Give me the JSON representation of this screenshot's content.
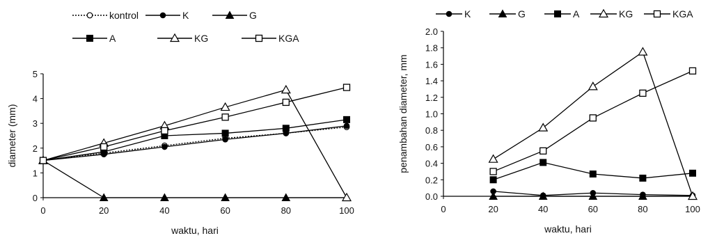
{
  "chart_data": [
    {
      "type": "line",
      "title": "",
      "xlabel": "waktu, hari",
      "ylabel": "diameter (mm)",
      "x": [
        0,
        20,
        40,
        60,
        80,
        100
      ],
      "xlim": [
        0,
        100
      ],
      "ylim": [
        0,
        5
      ],
      "xticks": [
        "0",
        "20",
        "40",
        "60",
        "80",
        "100"
      ],
      "yticks": [
        "0",
        "1",
        "2",
        "3",
        "4",
        "5"
      ],
      "grid": false,
      "legend_position": "top",
      "series": [
        {
          "name": "kontrol",
          "marker": "open-circle",
          "dash": "dotted",
          "values": [
            1.5,
            1.8,
            2.1,
            2.4,
            2.6,
            2.85
          ]
        },
        {
          "name": "K",
          "marker": "filled-circle",
          "values": [
            1.5,
            1.75,
            2.05,
            2.35,
            2.6,
            2.9
          ]
        },
        {
          "name": "G",
          "marker": "filled-triangle",
          "values": [
            1.5,
            0.0,
            0.0,
            0.0,
            0.0,
            0.0
          ]
        },
        {
          "name": "A",
          "marker": "filled-square",
          "values": [
            1.5,
            1.85,
            2.5,
            2.6,
            2.8,
            3.15
          ]
        },
        {
          "name": "KG",
          "marker": "open-triangle",
          "values": [
            1.5,
            2.2,
            2.9,
            3.65,
            4.35,
            0.0
          ]
        },
        {
          "name": "KGA",
          "marker": "open-square",
          "values": [
            1.5,
            2.05,
            2.7,
            3.25,
            3.85,
            4.45
          ]
        }
      ]
    },
    {
      "type": "line",
      "title": "",
      "xlabel": "waktu, hari",
      "ylabel": "penambahan diameter, mm",
      "x": [
        20,
        40,
        60,
        80,
        100
      ],
      "xlim": [
        0,
        100
      ],
      "ylim": [
        0,
        2.0
      ],
      "xticks": [
        "0",
        "20",
        "40",
        "60",
        "80",
        "100"
      ],
      "yticks": [
        "0.0",
        "0.2",
        "0.4",
        "0.6",
        "0.8",
        "1.0",
        "1.2",
        "1.4",
        "1.6",
        "1.8",
        "2.0"
      ],
      "grid": false,
      "legend_position": "top",
      "series": [
        {
          "name": "K",
          "marker": "filled-circle",
          "values": [
            0.06,
            0.01,
            0.04,
            0.02,
            0.01
          ]
        },
        {
          "name": "G",
          "marker": "filled-triangle",
          "values": [
            0.0,
            0.0,
            0.0,
            0.0,
            0.0
          ]
        },
        {
          "name": "A",
          "marker": "filled-square",
          "values": [
            0.2,
            0.41,
            0.27,
            0.22,
            0.28
          ]
        },
        {
          "name": "KG",
          "marker": "open-triangle",
          "values": [
            0.45,
            0.83,
            1.33,
            1.75,
            0.0
          ]
        },
        {
          "name": "KGA",
          "marker": "open-square",
          "values": [
            0.3,
            0.55,
            0.95,
            1.25,
            1.52
          ]
        }
      ]
    }
  ]
}
